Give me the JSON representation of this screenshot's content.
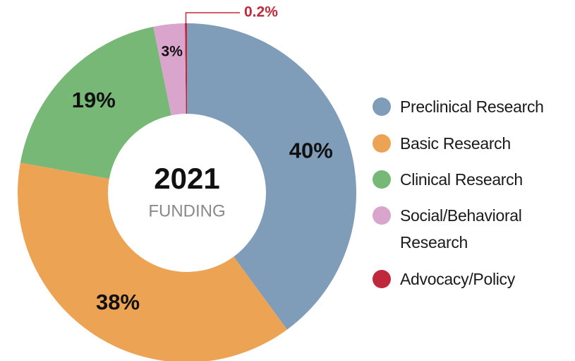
{
  "chart_data": {
    "type": "pie",
    "center_title": "2021",
    "center_subtitle": "FUNDING",
    "categories": [
      "Preclinical Research",
      "Basic Research",
      "Clinical Research",
      "Social/Behavioral Research",
      "Advocacy/Policy"
    ],
    "values": [
      40,
      38,
      19,
      3,
      0.2
    ],
    "value_labels": [
      "40%",
      "38%",
      "19%",
      "3%",
      "0.2%"
    ],
    "colors": [
      "#7f9cb8",
      "#eda354",
      "#77b877",
      "#d9a5cc",
      "#c0293b"
    ],
    "legend": "right"
  }
}
